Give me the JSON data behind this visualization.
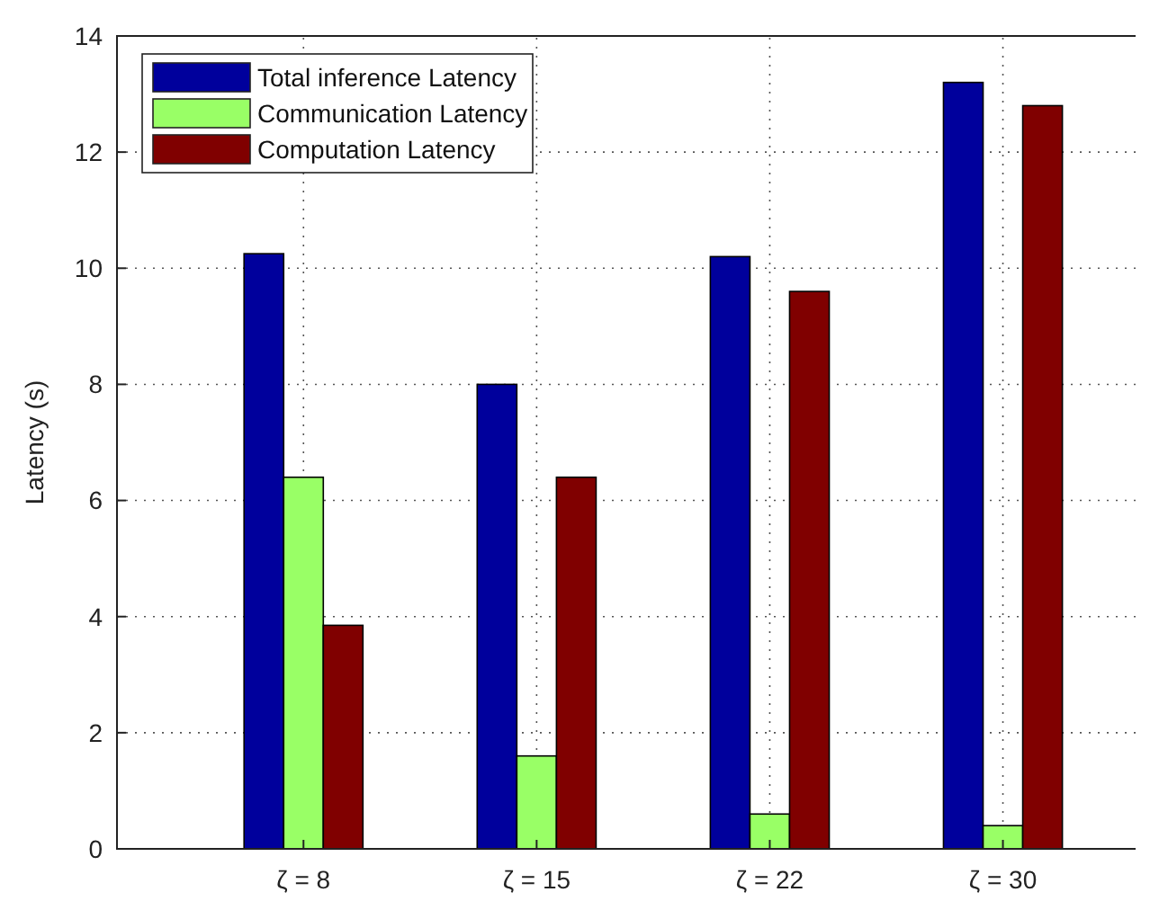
{
  "chart_data": {
    "type": "bar",
    "ylabel": "Latency (s)",
    "categories": [
      "ζ = 8",
      "ζ = 15",
      "ζ = 22",
      "ζ = 30"
    ],
    "series": [
      {
        "name": "Total inference Latency",
        "color": "#00009c",
        "values": [
          10.25,
          8.0,
          10.2,
          13.2
        ]
      },
      {
        "name": "Communication Latency",
        "color": "#99ff66",
        "values": [
          6.4,
          1.6,
          0.6,
          0.4
        ]
      },
      {
        "name": "Computation Latency",
        "color": "#800000",
        "values": [
          3.85,
          6.4,
          9.6,
          12.8
        ]
      }
    ],
    "ylim": [
      0,
      14
    ],
    "yticks": [
      0,
      2,
      4,
      6,
      8,
      10,
      12,
      14
    ],
    "grid": true,
    "legend": "top left"
  }
}
